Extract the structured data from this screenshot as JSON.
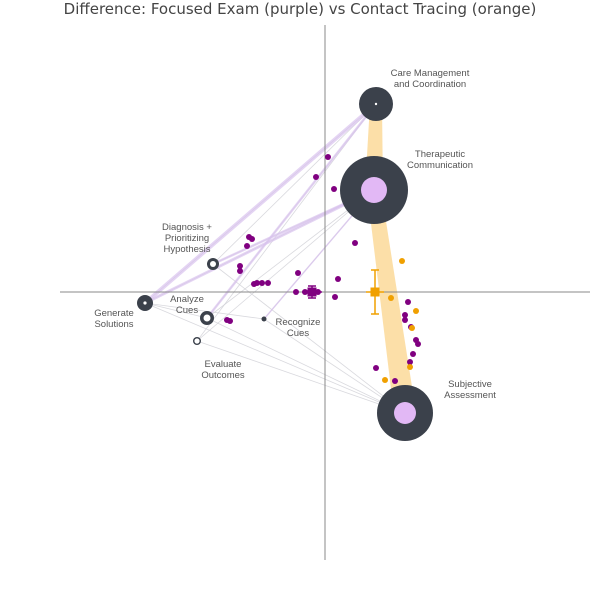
{
  "title": "Difference: Focused Exam (purple) vs Contact Tracing (orange)",
  "colors": {
    "purple": "#800080",
    "orange": "#f0a000",
    "node": "#3b414b",
    "node_fill": "#e2b8f5",
    "edge_orange": "#fcd999",
    "edge_purple": "#d9c2ee",
    "edge_gray": "#cfcfd6",
    "axis": "#888888"
  },
  "nodes": [
    {
      "id": "care",
      "lines": [
        "Care Management",
        "and Coordination"
      ]
    },
    {
      "id": "therapeutic",
      "lines": [
        "Therapeutic",
        "Communication"
      ]
    },
    {
      "id": "diagnosis",
      "lines": [
        "Diagnosis +",
        "Prioritizing",
        "Hypothesis"
      ]
    },
    {
      "id": "analyze",
      "lines": [
        "Analyze",
        "Cues"
      ]
    },
    {
      "id": "generate",
      "lines": [
        "Generate",
        "Solutions"
      ]
    },
    {
      "id": "recognize",
      "lines": [
        "Recognize",
        "Cues"
      ]
    },
    {
      "id": "evaluate",
      "lines": [
        "Evaluate",
        "Outcomes"
      ]
    },
    {
      "id": "subjective",
      "lines": [
        "Subjective",
        "Assessment"
      ]
    }
  ]
}
